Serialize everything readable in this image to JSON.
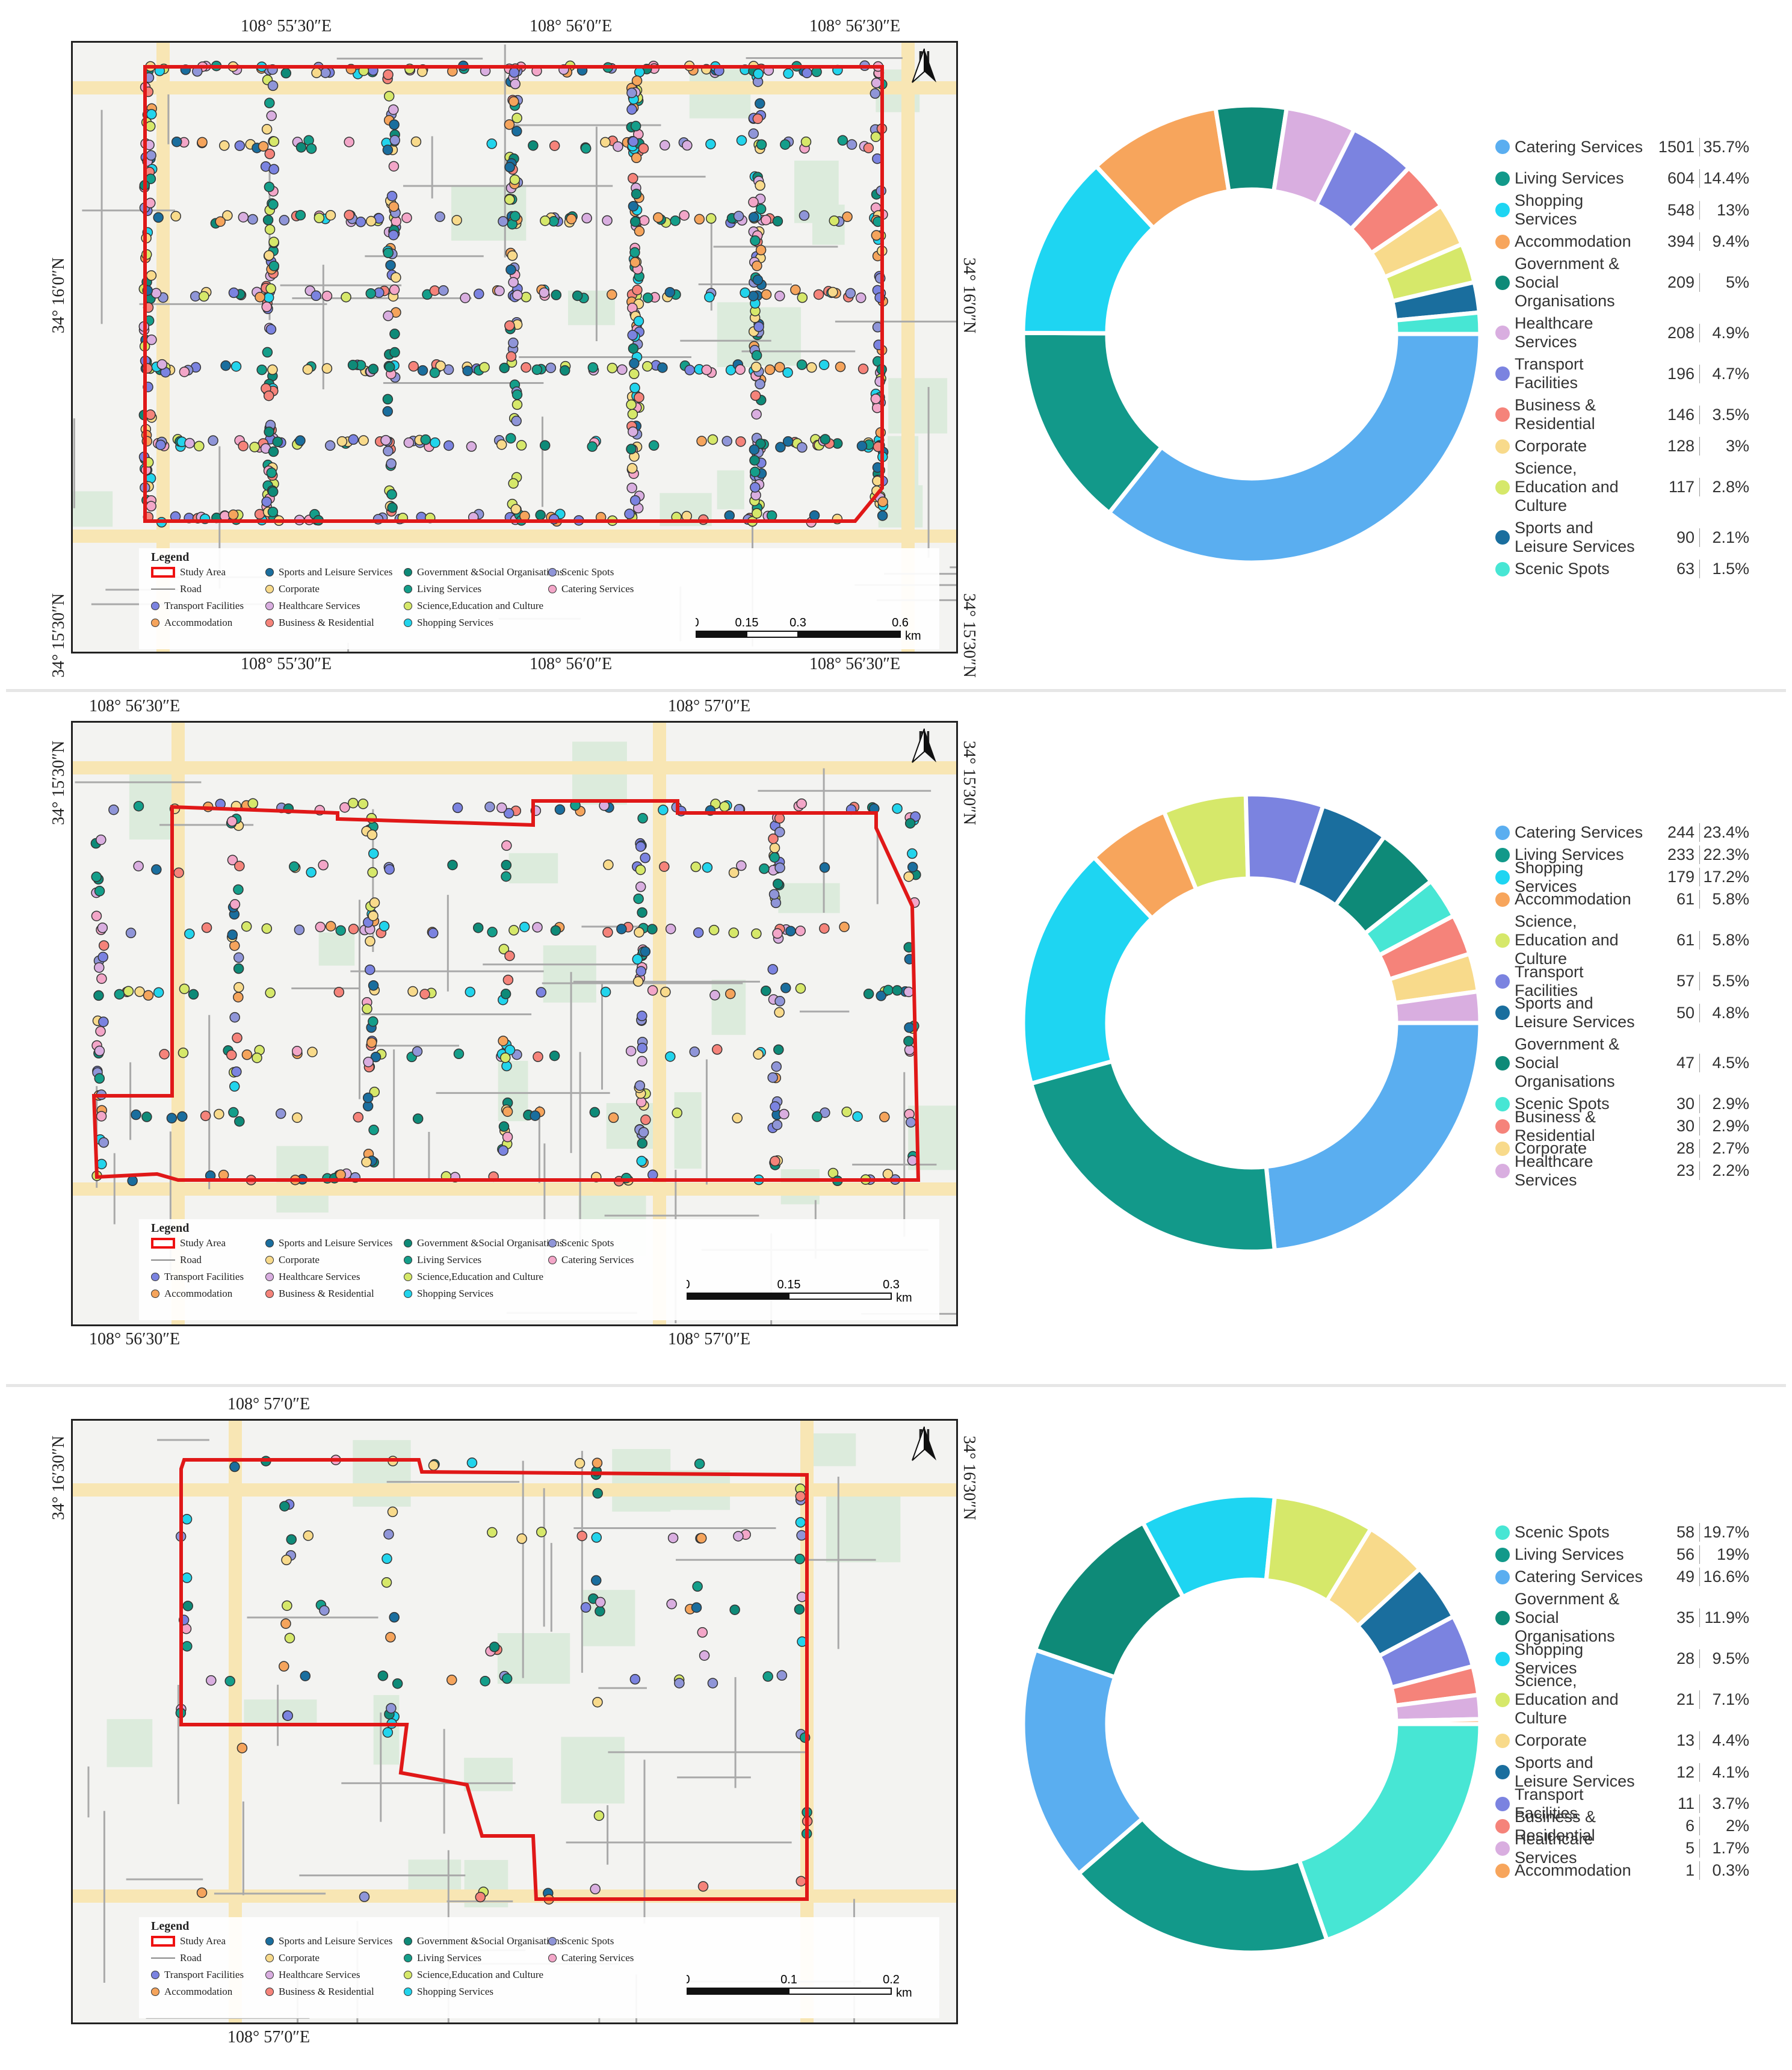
{
  "legend": {
    "title": "Legend",
    "study_area": "Study Area",
    "road": "Road",
    "items": [
      {
        "label": "Transport Facilities",
        "color": "#7b83e0"
      },
      {
        "label": "Accommodation",
        "color": "#f5a45c"
      },
      {
        "label": "Sports and Leisure Services",
        "color": "#1a6e9e"
      },
      {
        "label": "Corporate",
        "color": "#f8da8b"
      },
      {
        "label": "Healthcare Services",
        "color": "#d9aee0"
      },
      {
        "label": "Business & Residential",
        "color": "#f5837a"
      },
      {
        "label": "Government &Social Organisations",
        "color": "#0e8a78"
      },
      {
        "label": "Living Services",
        "color": "#149e8a"
      },
      {
        "label": "Science,Education and Culture",
        "color": "#d6e86a"
      },
      {
        "label": "Shopping Services",
        "color": "#22d4ec"
      },
      {
        "label": "Scenic Spots",
        "color": "#8f95d8"
      },
      {
        "label": "Catering Services",
        "color": "#f3a6c8"
      }
    ],
    "north": "N",
    "km": "km"
  },
  "maps": [
    {
      "top_coords": [
        "108° 55′30″E",
        "108° 56′0″E",
        "108° 56′30″E"
      ],
      "bottom_coords": [
        "108° 55′30″E",
        "108° 56′0″E",
        "108° 56′30″E"
      ],
      "left_coords": [
        "34° 16′0″N",
        "34° 15′30″N"
      ],
      "right_coords": [
        "34° 16′0″N",
        "34° 15′30″N"
      ],
      "scale_labels": [
        "0",
        "0.15",
        "0.3",
        "0.6"
      ]
    },
    {
      "top_coords": [
        "108° 56′30″E",
        "108° 57′0″E"
      ],
      "bottom_coords": [
        "108° 56′30″E",
        "108° 57′0″E"
      ],
      "left_coords": [
        "34° 15′30″N"
      ],
      "right_coords": [
        "34° 15′30″N"
      ],
      "scale_labels": [
        "0",
        "0.15",
        "0.3"
      ]
    },
    {
      "top_coords": [
        "108° 57′0″E"
      ],
      "bottom_coords": [
        "108° 57′0″E"
      ],
      "left_coords": [
        "34° 16′30″N"
      ],
      "right_coords": [
        "34° 16′30″N"
      ],
      "scale_labels": [
        "0",
        "0.1",
        "0.2"
      ]
    }
  ],
  "chart_data": [
    {
      "type": "pie",
      "donut": true,
      "categories": [
        "Catering Services",
        "Living Services",
        "Shopping Services",
        "Accommodation",
        "Government & Social Organisations",
        "Healthcare Services",
        "Transport Facilities",
        "Business & Residential",
        "Corporate",
        "Science, Education and Culture",
        "Sports and Leisure Services",
        "Scenic Spots"
      ],
      "values": [
        1501,
        604,
        548,
        394,
        209,
        208,
        196,
        146,
        128,
        117,
        90,
        63
      ],
      "percents": [
        "35.7%",
        "14.4%",
        "13%",
        "9.4%",
        "5%",
        "4.9%",
        "4.7%",
        "3.5%",
        "3%",
        "2.8%",
        "2.1%",
        "1.5%"
      ],
      "colors": [
        "#5aaef0",
        "#12998a",
        "#1ed5f2",
        "#f7a55c",
        "#0e8a78",
        "#d9aee0",
        "#7b83e0",
        "#f5837a",
        "#f8da8b",
        "#d6e86a",
        "#1a6e9e",
        "#47e6d4"
      ]
    },
    {
      "type": "pie",
      "donut": true,
      "categories": [
        "Catering Services",
        "Living Services",
        "Shopping Services",
        "Accommodation",
        "Science, Education and Culture",
        "Transport Facilities",
        "Sports and Leisure Services",
        "Government & Social Organisations",
        "Scenic Spots",
        "Business & Residential",
        "Corporate",
        "Healthcare Services"
      ],
      "values": [
        244,
        233,
        179,
        61,
        61,
        57,
        50,
        47,
        30,
        30,
        28,
        23
      ],
      "percents": [
        "23.4%",
        "22.3%",
        "17.2%",
        "5.8%",
        "5.8%",
        "5.5%",
        "4.8%",
        "4.5%",
        "2.9%",
        "2.9%",
        "2.7%",
        "2.2%"
      ],
      "colors": [
        "#5aaef0",
        "#12998a",
        "#1ed5f2",
        "#f7a55c",
        "#d6e86a",
        "#7b83e0",
        "#1a6e9e",
        "#0e8a78",
        "#47e6d4",
        "#f5837a",
        "#f8da8b",
        "#d9aee0"
      ]
    },
    {
      "type": "pie",
      "donut": true,
      "categories": [
        "Scenic Spots",
        "Living Services",
        "Catering Services",
        "Government & Social Organisations",
        "Shopping Services",
        "Science, Education and Culture",
        "Corporate",
        "Sports and Leisure Services",
        "Transport Facilities",
        "Business & Residential",
        "Healthcare Services",
        "Accommodation"
      ],
      "values": [
        58,
        56,
        49,
        35,
        28,
        21,
        13,
        12,
        11,
        6,
        5,
        1
      ],
      "percents": [
        "19.7%",
        "19%",
        "16.6%",
        "11.9%",
        "9.5%",
        "7.1%",
        "4.4%",
        "4.1%",
        "3.7%",
        "2%",
        "1.7%",
        "0.3%"
      ],
      "colors": [
        "#47e6d4",
        "#12998a",
        "#5aaef0",
        "#0e8a78",
        "#1ed5f2",
        "#d6e86a",
        "#f8da8b",
        "#1a6e9e",
        "#7b83e0",
        "#f5837a",
        "#d9aee0",
        "#f7a55c"
      ]
    }
  ]
}
